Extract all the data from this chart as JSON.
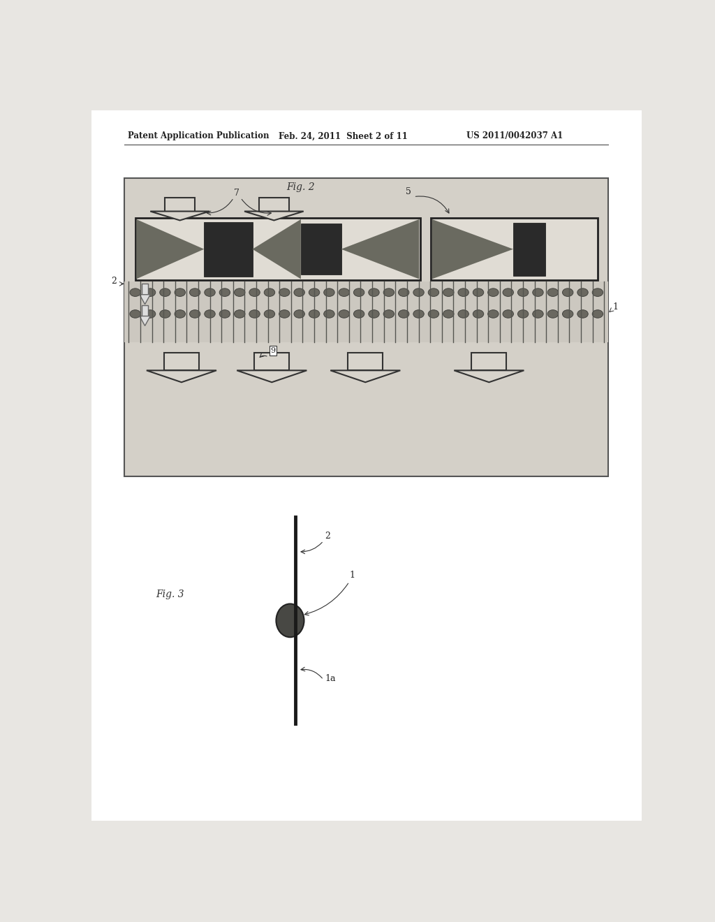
{
  "outer_bg": "#e8e6e2",
  "page_bg": "#ffffff",
  "diagram_bg": "#d4d0c8",
  "tube_bg": "#e0dcd4",
  "tube_dark": "#2a2a2a",
  "tube_mid": "#6a6a60",
  "tube_light": "#b8b4ac",
  "fin_color": "#555550",
  "circle_color": "#6a6860",
  "arrow_fill": "#d8d4cc",
  "arrow_edge": "#333333",
  "line_color": "#333333",
  "header_text1": "Patent Application Publication",
  "header_text2": "Feb. 24, 2011  Sheet 2 of 11",
  "header_text3": "US 2011/0042037 A1",
  "fig2_title": "Fig. 2",
  "fig3_title": "Fig. 3",
  "label_1": "1",
  "label_1a": "1a",
  "label_2": "2",
  "label_5": "5",
  "label_7": "7",
  "label_9": "9"
}
